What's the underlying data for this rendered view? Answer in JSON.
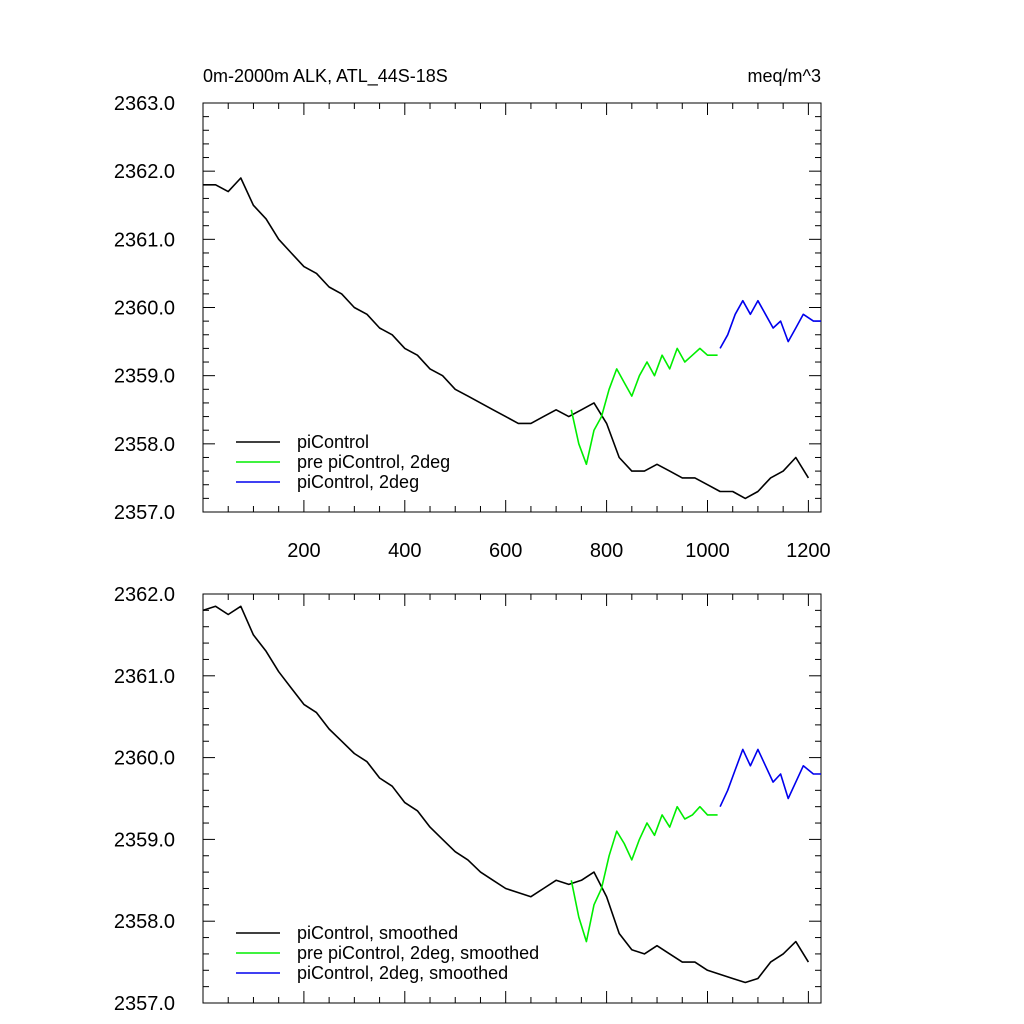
{
  "chart_data": [
    {
      "type": "line",
      "title_left": "0m-2000m ALK, ATL_44S-18S",
      "title_right": "meq/m^3",
      "xlim": [
        0,
        1225
      ],
      "ylim": [
        2357.0,
        2363.0
      ],
      "xticks": [
        200,
        400,
        600,
        800,
        1000,
        1200
      ],
      "xtick_labels": [
        "200",
        "400",
        "600",
        "800",
        "1000",
        "1200"
      ],
      "yticks": [
        2357.0,
        2358.0,
        2359.0,
        2360.0,
        2361.0,
        2362.0,
        2363.0
      ],
      "ytick_labels": [
        "2357.0",
        "2358.0",
        "2359.0",
        "2360.0",
        "2361.0",
        "2362.0",
        "2363.0"
      ],
      "legend_position": "bottom-left",
      "series": [
        {
          "name": "piControl",
          "color": "#000000",
          "x": [
            0,
            25,
            50,
            75,
            100,
            125,
            150,
            175,
            200,
            225,
            250,
            275,
            300,
            325,
            350,
            375,
            400,
            425,
            450,
            475,
            500,
            525,
            550,
            575,
            600,
            625,
            650,
            675,
            700,
            725,
            750,
            775,
            800,
            825,
            850,
            875,
            900,
            925,
            950,
            975,
            1000,
            1025,
            1050,
            1075,
            1100,
            1125,
            1150,
            1175,
            1200
          ],
          "y": [
            2361.8,
            2361.8,
            2361.7,
            2361.9,
            2361.5,
            2361.3,
            2361.0,
            2360.8,
            2360.6,
            2360.5,
            2360.3,
            2360.2,
            2360.0,
            2359.9,
            2359.7,
            2359.6,
            2359.4,
            2359.3,
            2359.1,
            2359.0,
            2358.8,
            2358.7,
            2358.6,
            2358.5,
            2358.4,
            2358.3,
            2358.3,
            2358.4,
            2358.5,
            2358.4,
            2358.5,
            2358.6,
            2358.3,
            2357.8,
            2357.6,
            2357.6,
            2357.7,
            2357.6,
            2357.5,
            2357.5,
            2357.4,
            2357.3,
            2357.3,
            2357.2,
            2357.3,
            2357.5,
            2357.6,
            2357.8,
            2357.5
          ]
        },
        {
          "name": "pre piControl, 2deg",
          "color": "#00ee00",
          "x": [
            730,
            745,
            760,
            775,
            790,
            805,
            820,
            835,
            850,
            865,
            880,
            895,
            910,
            925,
            940,
            955,
            970,
            985,
            1000,
            1020
          ],
          "y": [
            2358.5,
            2358.0,
            2357.7,
            2358.2,
            2358.4,
            2358.8,
            2359.1,
            2358.9,
            2358.7,
            2359.0,
            2359.2,
            2359.0,
            2359.3,
            2359.1,
            2359.4,
            2359.2,
            2359.3,
            2359.4,
            2359.3,
            2359.3
          ]
        },
        {
          "name": "piControl, 2deg",
          "color": "#0000ee",
          "x": [
            1025,
            1040,
            1055,
            1070,
            1085,
            1100,
            1115,
            1130,
            1145,
            1160,
            1175,
            1190,
            1210,
            1225
          ],
          "y": [
            2359.4,
            2359.6,
            2359.9,
            2360.1,
            2359.9,
            2360.1,
            2359.9,
            2359.7,
            2359.8,
            2359.5,
            2359.7,
            2359.9,
            2359.8,
            2359.8
          ]
        }
      ]
    },
    {
      "type": "line",
      "xlim": [
        0,
        1225
      ],
      "ylim": [
        2357.0,
        2362.0
      ],
      "xticks": [
        200,
        400,
        600,
        800,
        1000,
        1200
      ],
      "yticks": [
        2357.0,
        2358.0,
        2359.0,
        2360.0,
        2361.0,
        2362.0
      ],
      "ytick_labels": [
        "2357.0",
        "2358.0",
        "2359.0",
        "2360.0",
        "2361.0",
        "2362.0"
      ],
      "legend_position": "bottom-left",
      "series": [
        {
          "name": "piControl, smoothed",
          "color": "#000000",
          "x": [
            0,
            25,
            50,
            75,
            100,
            125,
            150,
            175,
            200,
            225,
            250,
            275,
            300,
            325,
            350,
            375,
            400,
            425,
            450,
            475,
            500,
            525,
            550,
            575,
            600,
            625,
            650,
            675,
            700,
            725,
            750,
            775,
            800,
            825,
            850,
            875,
            900,
            925,
            950,
            975,
            1000,
            1025,
            1050,
            1075,
            1100,
            1125,
            1150,
            1175,
            1200
          ],
          "y": [
            2361.8,
            2361.85,
            2361.75,
            2361.85,
            2361.5,
            2361.3,
            2361.05,
            2360.85,
            2360.65,
            2360.55,
            2360.35,
            2360.2,
            2360.05,
            2359.95,
            2359.75,
            2359.65,
            2359.45,
            2359.35,
            2359.15,
            2359.0,
            2358.85,
            2358.75,
            2358.6,
            2358.5,
            2358.4,
            2358.35,
            2358.3,
            2358.4,
            2358.5,
            2358.45,
            2358.5,
            2358.6,
            2358.3,
            2357.85,
            2357.65,
            2357.6,
            2357.7,
            2357.6,
            2357.5,
            2357.5,
            2357.4,
            2357.35,
            2357.3,
            2357.25,
            2357.3,
            2357.5,
            2357.6,
            2357.75,
            2357.5
          ]
        },
        {
          "name": "pre piControl, 2deg, smoothed",
          "color": "#00ee00",
          "x": [
            730,
            745,
            760,
            775,
            790,
            805,
            820,
            835,
            850,
            865,
            880,
            895,
            910,
            925,
            940,
            955,
            970,
            985,
            1000,
            1020
          ],
          "y": [
            2358.5,
            2358.05,
            2357.75,
            2358.2,
            2358.4,
            2358.8,
            2359.1,
            2358.95,
            2358.75,
            2359.0,
            2359.2,
            2359.05,
            2359.3,
            2359.15,
            2359.4,
            2359.25,
            2359.3,
            2359.4,
            2359.3,
            2359.3
          ]
        },
        {
          "name": "piControl, 2deg, smoothed",
          "color": "#0000ee",
          "x": [
            1025,
            1040,
            1055,
            1070,
            1085,
            1100,
            1115,
            1130,
            1145,
            1160,
            1175,
            1190,
            1210,
            1225
          ],
          "y": [
            2359.4,
            2359.6,
            2359.85,
            2360.1,
            2359.9,
            2360.1,
            2359.9,
            2359.7,
            2359.8,
            2359.5,
            2359.7,
            2359.9,
            2359.8,
            2359.8
          ]
        }
      ]
    }
  ]
}
